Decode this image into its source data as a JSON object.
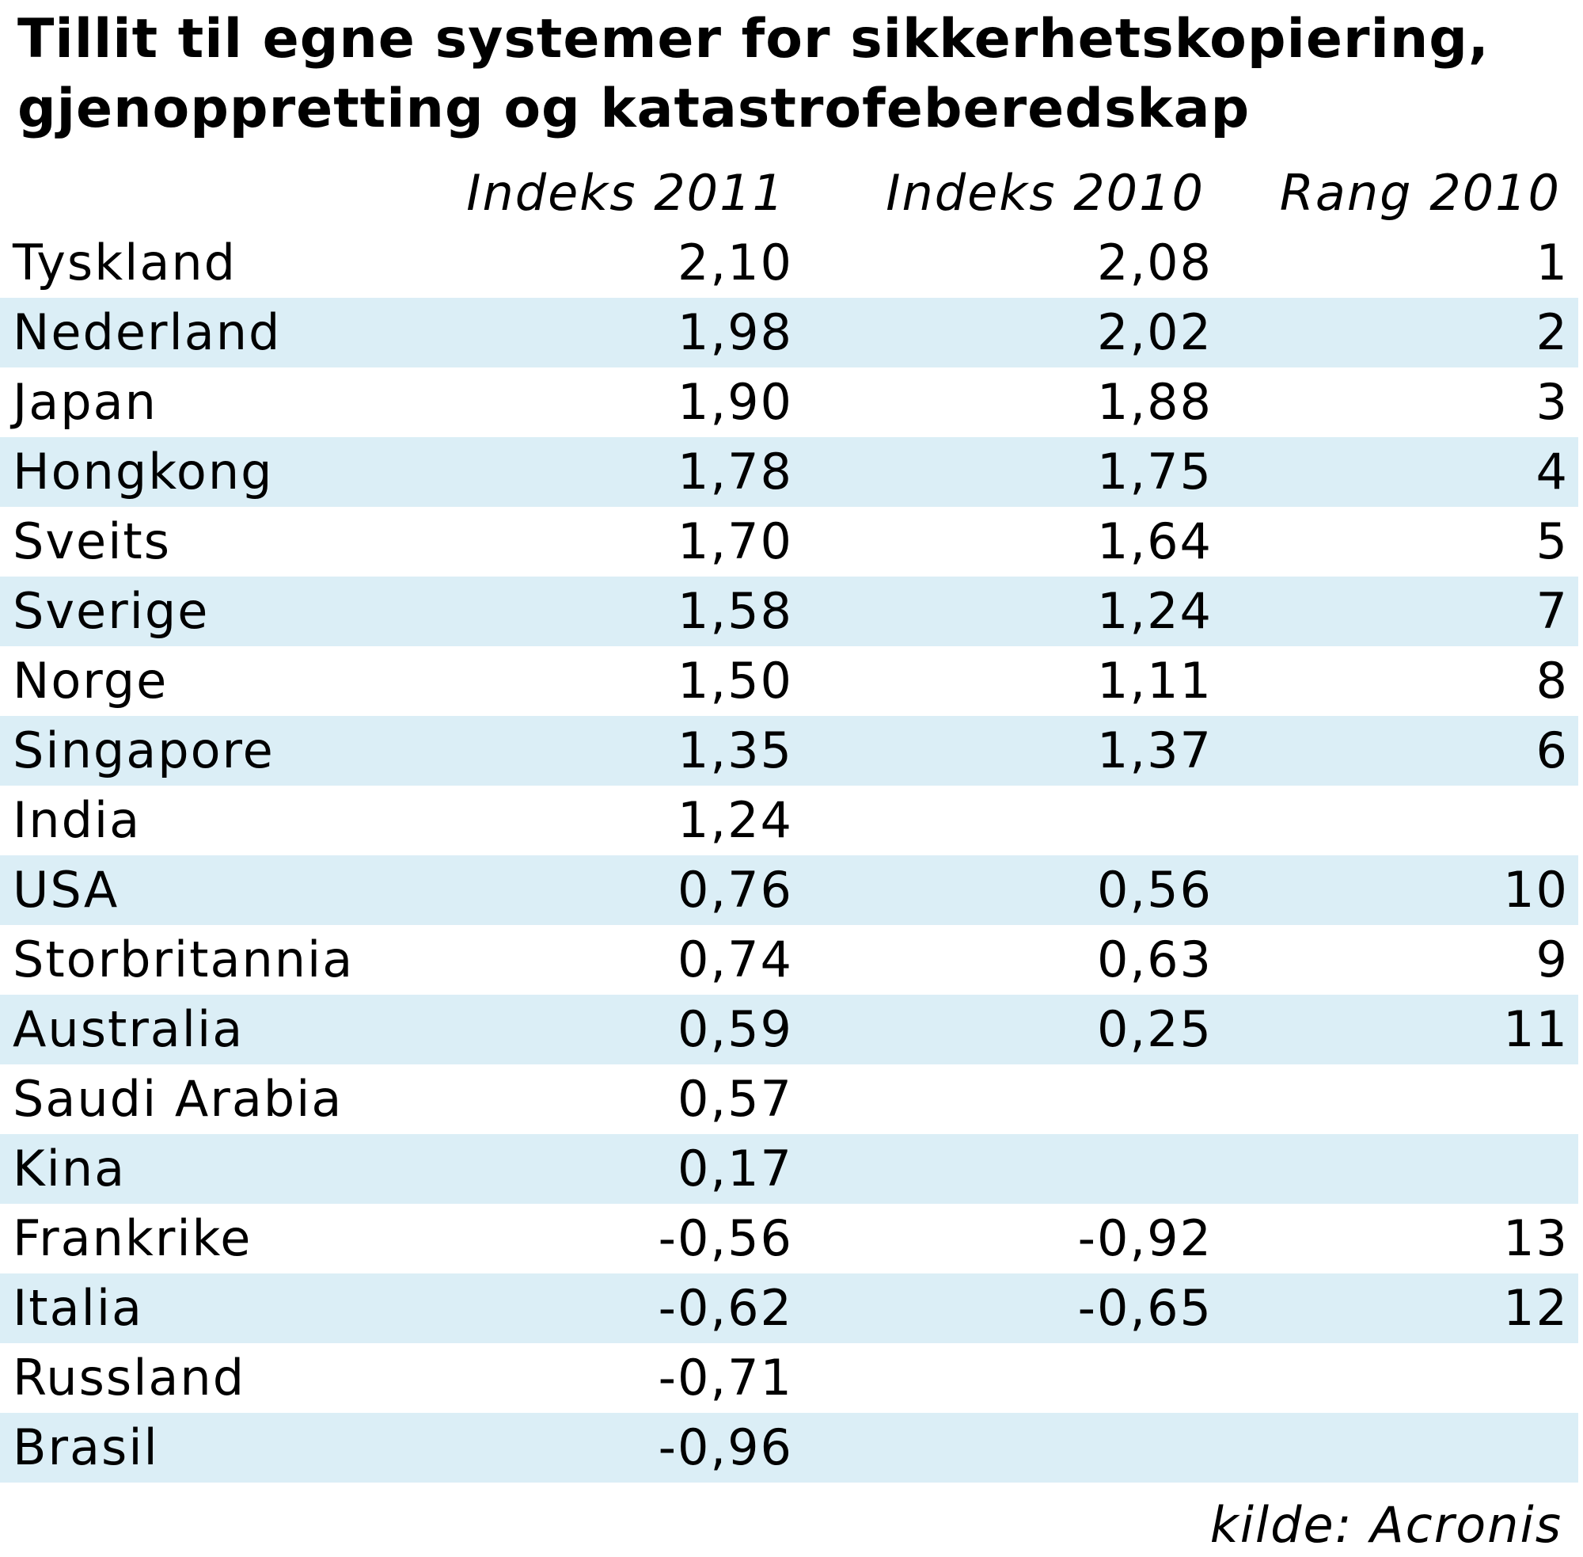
{
  "title": {
    "line1": "Tillit til egne systemer for sikkerhetskopiering,",
    "line2": "gjenoppretting og katastrofeberedskap"
  },
  "table": {
    "headers": [
      "",
      "Indeks 2011",
      "Indeks 2010",
      "Rang 2010"
    ],
    "rows": [
      [
        "Tyskland",
        "2,10",
        "2,08",
        "1"
      ],
      [
        "Nederland",
        "1,98",
        "2,02",
        "2"
      ],
      [
        "Japan",
        "1,90",
        "1,88",
        "3"
      ],
      [
        "Hongkong",
        "1,78",
        "1,75",
        "4"
      ],
      [
        "Sveits",
        "1,70",
        "1,64",
        "5"
      ],
      [
        "Sverige",
        "1,58",
        "1,24",
        "7"
      ],
      [
        "Norge",
        "1,50",
        "1,11",
        "8"
      ],
      [
        "Singapore",
        "1,35",
        "1,37",
        "6"
      ],
      [
        "India",
        "1,24",
        "",
        ""
      ],
      [
        "USA",
        "0,76",
        "0,56",
        "10"
      ],
      [
        "Storbritannia",
        "0,74",
        "0,63",
        "9"
      ],
      [
        "Australia",
        "0,59",
        "0,25",
        "11"
      ],
      [
        "Saudi Arabia",
        "0,57",
        "",
        ""
      ],
      [
        "Kina",
        "0,17",
        "",
        ""
      ],
      [
        "Frankrike",
        "-0,56",
        "-0,92",
        "13"
      ],
      [
        "Italia",
        "-0,62",
        "-0,65",
        "12"
      ],
      [
        "Russland",
        "-0,71",
        "",
        ""
      ],
      [
        "Brasil",
        "-0,96",
        "",
        ""
      ]
    ]
  },
  "source": "kilde: Acronis",
  "colors": {
    "alt_row": "#dbeef6",
    "text": "#000000",
    "background": "#ffffff"
  }
}
